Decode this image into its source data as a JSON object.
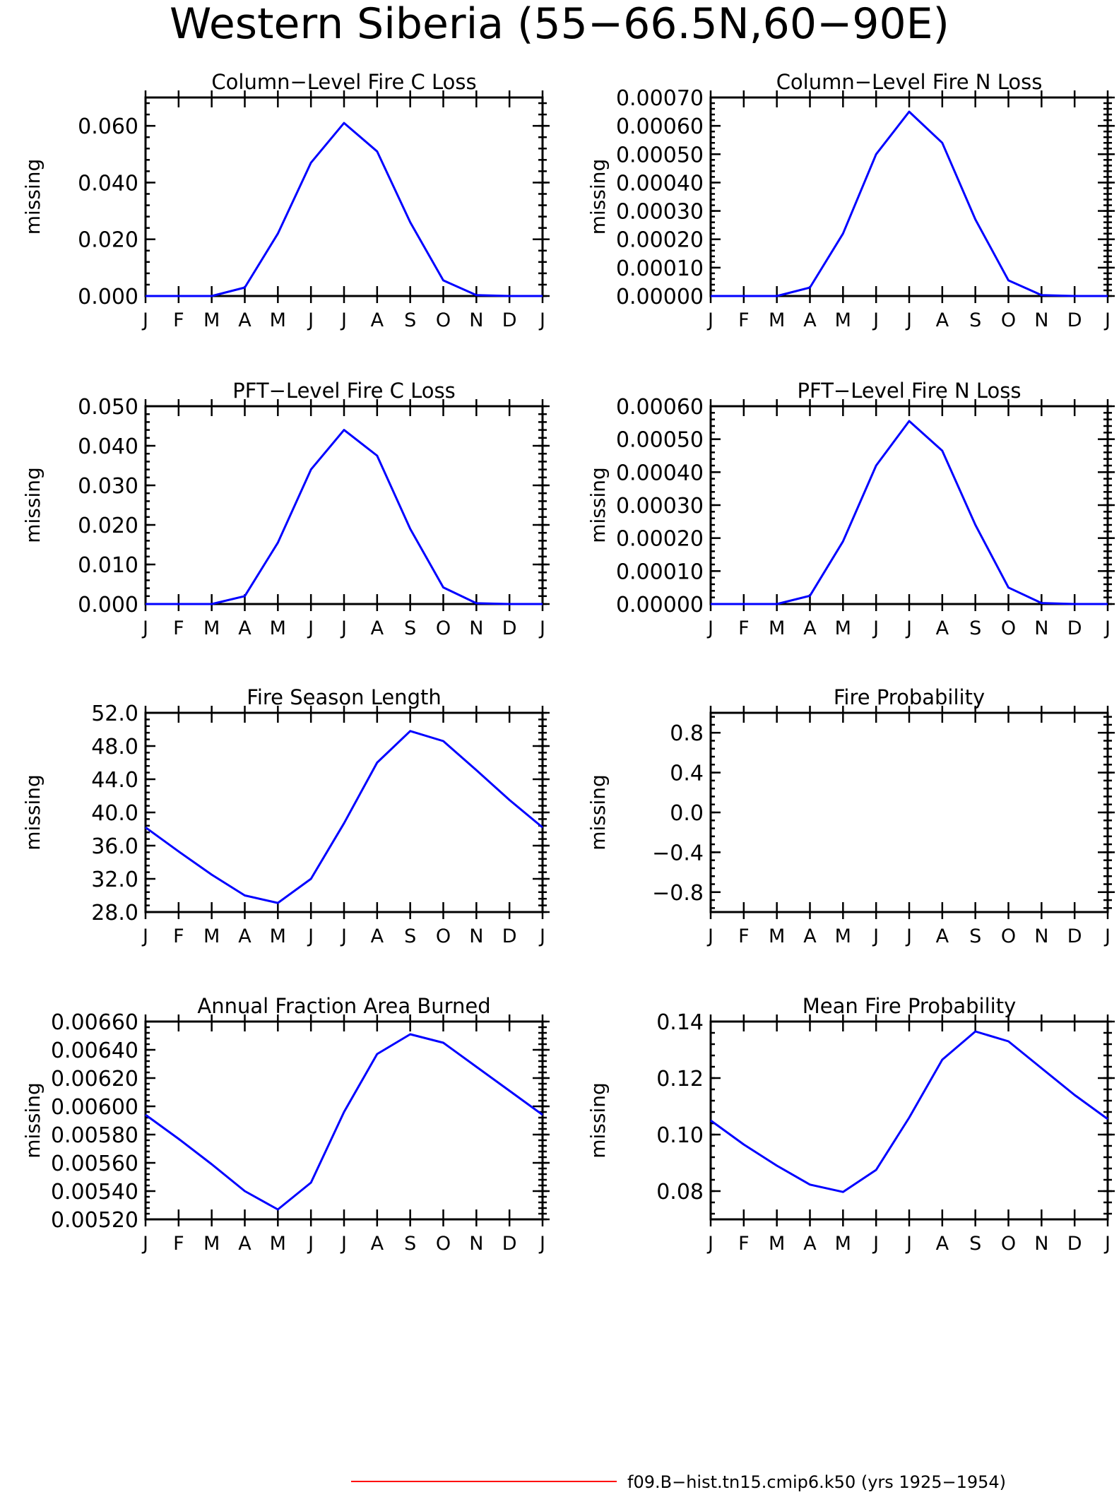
{
  "figure": {
    "title": "Western Siberia (55−66.5N,60−90E)",
    "series_color": "#0000ff",
    "legend": {
      "label": "f09.B−hist.tn15.cmip6.k50 (yrs 1925−1954)",
      "color": "#ff0000"
    }
  },
  "chart_data": [
    {
      "type": "line",
      "title": "Column−Level Fire C Loss",
      "ylabel": "missing",
      "x": [
        "J",
        "F",
        "M",
        "A",
        "M",
        "J",
        "J",
        "A",
        "S",
        "O",
        "N",
        "D",
        "J"
      ],
      "ylim": [
        0.0,
        0.07
      ],
      "yticks": [
        "0.000",
        "0.020",
        "0.040",
        "0.060"
      ],
      "ytick_values": [
        0.0,
        0.02,
        0.04,
        0.06
      ],
      "series": [
        {
          "values": [
            0,
            0,
            0,
            0.003,
            0.022,
            0.047,
            0.061,
            0.051,
            0.026,
            0.0055,
            0.0003,
            0,
            0
          ]
        }
      ]
    },
    {
      "type": "line",
      "title": "Column−Level Fire N Loss",
      "ylabel": "missing",
      "x": [
        "J",
        "F",
        "M",
        "A",
        "M",
        "J",
        "J",
        "A",
        "S",
        "O",
        "N",
        "D",
        "J"
      ],
      "ylim": [
        0.0,
        0.0007
      ],
      "yticks": [
        "0.00000",
        "0.00010",
        "0.00020",
        "0.00030",
        "0.00040",
        "0.00050",
        "0.00060",
        "0.00070"
      ],
      "ytick_values": [
        0.0,
        0.0001,
        0.0002,
        0.0003,
        0.0004,
        0.0005,
        0.0006,
        0.0007
      ],
      "series": [
        {
          "values": [
            0,
            0,
            0,
            3e-05,
            0.00022,
            0.0005,
            0.00065,
            0.00054,
            0.00027,
            5.5e-05,
            3e-06,
            0,
            0
          ]
        }
      ]
    },
    {
      "type": "line",
      "title": "PFT−Level Fire C Loss",
      "ylabel": "missing",
      "x": [
        "J",
        "F",
        "M",
        "A",
        "M",
        "J",
        "J",
        "A",
        "S",
        "O",
        "N",
        "D",
        "J"
      ],
      "ylim": [
        0.0,
        0.05
      ],
      "yticks": [
        "0.000",
        "0.010",
        "0.020",
        "0.030",
        "0.040",
        "0.050"
      ],
      "ytick_values": [
        0.0,
        0.01,
        0.02,
        0.03,
        0.04,
        0.05
      ],
      "series": [
        {
          "values": [
            0,
            0,
            0,
            0.002,
            0.0155,
            0.034,
            0.044,
            0.0375,
            0.019,
            0.0042,
            0.0002,
            0,
            0
          ]
        }
      ]
    },
    {
      "type": "line",
      "title": "PFT−Level Fire N Loss",
      "ylabel": "missing",
      "x": [
        "J",
        "F",
        "M",
        "A",
        "M",
        "J",
        "J",
        "A",
        "S",
        "O",
        "N",
        "D",
        "J"
      ],
      "ylim": [
        0.0,
        0.0006
      ],
      "yticks": [
        "0.00000",
        "0.00010",
        "0.00020",
        "0.00030",
        "0.00040",
        "0.00050",
        "0.00060"
      ],
      "ytick_values": [
        0.0,
        0.0001,
        0.0002,
        0.0003,
        0.0004,
        0.0005,
        0.0006
      ],
      "series": [
        {
          "values": [
            0,
            0,
            0,
            2.5e-05,
            0.00019,
            0.00042,
            0.000555,
            0.000465,
            0.00024,
            5e-05,
            3e-06,
            0,
            0
          ]
        }
      ]
    },
    {
      "type": "line",
      "title": "Fire Season Length",
      "ylabel": "missing",
      "x": [
        "J",
        "F",
        "M",
        "A",
        "M",
        "J",
        "J",
        "A",
        "S",
        "O",
        "N",
        "D",
        "J"
      ],
      "ylim": [
        28.0,
        52.0
      ],
      "yticks": [
        "28.0",
        "32.0",
        "36.0",
        "40.0",
        "44.0",
        "48.0",
        "52.0"
      ],
      "ytick_values": [
        28,
        32,
        36,
        40,
        44,
        48,
        52
      ],
      "series": [
        {
          "values": [
            38.2,
            35.3,
            32.5,
            30.0,
            29.1,
            32.0,
            38.7,
            46.0,
            49.8,
            48.6,
            45.1,
            41.5,
            38.2
          ]
        }
      ]
    },
    {
      "type": "line",
      "title": "Fire Probability",
      "ylabel": "missing",
      "x": [
        "J",
        "F",
        "M",
        "A",
        "M",
        "J",
        "J",
        "A",
        "S",
        "O",
        "N",
        "D",
        "J"
      ],
      "ylim": [
        -1.0,
        1.0
      ],
      "yticks": [
        "−0.8",
        "−0.4",
        "0.0",
        "0.4",
        "0.8"
      ],
      "ytick_values": [
        -0.8,
        -0.4,
        0.0,
        0.4,
        0.8
      ],
      "series": []
    },
    {
      "type": "line",
      "title": "Annual Fraction Area Burned",
      "ylabel": "missing",
      "x": [
        "J",
        "F",
        "M",
        "A",
        "M",
        "J",
        "J",
        "A",
        "S",
        "O",
        "N",
        "D",
        "J"
      ],
      "ylim": [
        0.0052,
        0.0066
      ],
      "yticks": [
        "0.00520",
        "0.00540",
        "0.00560",
        "0.00580",
        "0.00600",
        "0.00620",
        "0.00640",
        "0.00660"
      ],
      "ytick_values": [
        0.0052,
        0.0054,
        0.0056,
        0.0058,
        0.006,
        0.0062,
        0.0064,
        0.0066
      ],
      "series": [
        {
          "values": [
            0.00594,
            0.00577,
            0.00559,
            0.0054,
            0.00527,
            0.00546,
            0.00596,
            0.00637,
            0.00651,
            0.00645,
            0.00628,
            0.00611,
            0.00594
          ]
        }
      ]
    },
    {
      "type": "line",
      "title": "Mean Fire Probability",
      "ylabel": "missing",
      "x": [
        "J",
        "F",
        "M",
        "A",
        "M",
        "J",
        "J",
        "A",
        "S",
        "O",
        "N",
        "D",
        "J"
      ],
      "ylim": [
        0.07,
        0.14
      ],
      "yticks": [
        "0.08",
        "0.10",
        "0.12",
        "0.14"
      ],
      "ytick_values": [
        0.08,
        0.1,
        0.12,
        0.14
      ],
      "series": [
        {
          "values": [
            0.105,
            0.0965,
            0.089,
            0.0823,
            0.0797,
            0.0875,
            0.106,
            0.1265,
            0.1365,
            0.133,
            0.1235,
            0.114,
            0.1055
          ]
        }
      ]
    }
  ]
}
